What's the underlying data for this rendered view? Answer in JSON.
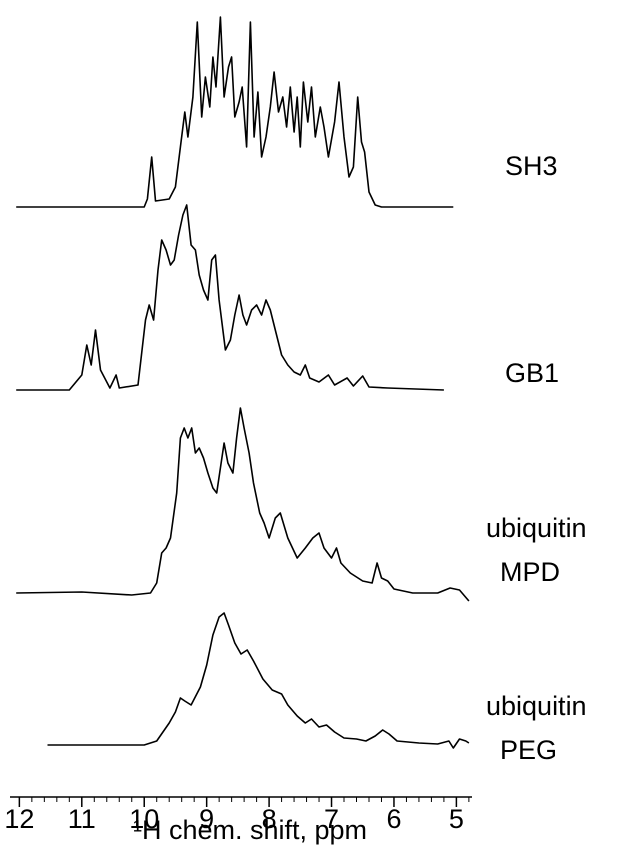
{
  "chart_data": {
    "type": "line",
    "xlabel": "¹H chem. shift, ppm",
    "xlim": [
      12.15,
      4.75
    ],
    "xticks": [
      12,
      11,
      10,
      9,
      8,
      7,
      6,
      5
    ],
    "xminorticks": [
      11.8,
      11.6,
      11.4,
      11.2,
      10.8,
      10.6,
      10.4,
      10.2,
      9.8,
      9.6,
      9.4,
      9.2,
      8.8,
      8.6,
      8.4,
      8.2,
      7.8,
      7.6,
      7.4,
      7.2,
      6.8,
      6.6,
      6.4,
      6.2,
      5.8,
      5.6,
      5.4,
      5.2,
      4.8
    ],
    "series": [
      {
        "name": [
          "SH3"
        ],
        "color": "#000000",
        "x": [
          12.05,
          10.0,
          9.95,
          9.88,
          9.82,
          9.6,
          9.5,
          9.42,
          9.35,
          9.3,
          9.22,
          9.15,
          9.08,
          9.02,
          8.95,
          8.9,
          8.85,
          8.78,
          8.72,
          8.65,
          8.6,
          8.55,
          8.48,
          8.43,
          8.36,
          8.3,
          8.24,
          8.18,
          8.12,
          8.05,
          7.98,
          7.92,
          7.85,
          7.78,
          7.72,
          7.66,
          7.6,
          7.55,
          7.5,
          7.45,
          7.38,
          7.32,
          7.26,
          7.18,
          7.12,
          7.05,
          6.95,
          6.88,
          6.8,
          6.72,
          6.65,
          6.58,
          6.52,
          6.47,
          6.4,
          6.3,
          6.2,
          5.05
        ],
        "values": [
          0,
          0,
          8,
          50,
          6,
          8,
          20,
          60,
          95,
          70,
          110,
          185,
          90,
          130,
          100,
          150,
          120,
          190,
          110,
          140,
          150,
          90,
          105,
          120,
          60,
          185,
          70,
          115,
          50,
          70,
          100,
          135,
          95,
          110,
          80,
          120,
          75,
          110,
          60,
          125,
          85,
          120,
          70,
          100,
          80,
          50,
          85,
          125,
          70,
          30,
          40,
          110,
          65,
          55,
          15,
          2,
          0,
          0
        ]
      },
      {
        "name": [
          "GB1"
        ],
        "color": "#000000",
        "x": [
          12.05,
          11.2,
          11.0,
          10.92,
          10.85,
          10.78,
          10.7,
          10.55,
          10.45,
          10.4,
          10.1,
          9.98,
          9.92,
          9.85,
          9.78,
          9.72,
          9.65,
          9.58,
          9.52,
          9.45,
          9.38,
          9.32,
          9.25,
          9.18,
          9.12,
          9.05,
          8.98,
          8.92,
          8.86,
          8.8,
          8.7,
          8.62,
          8.55,
          8.48,
          8.42,
          8.36,
          8.28,
          8.2,
          8.12,
          8.05,
          7.98,
          7.9,
          7.8,
          7.7,
          7.6,
          7.5,
          7.42,
          7.35,
          7.2,
          7.05,
          6.95,
          6.75,
          6.65,
          6.5,
          6.4,
          6.1,
          5.2
        ],
        "values": [
          0,
          0,
          15,
          45,
          25,
          60,
          20,
          2,
          15,
          2,
          5,
          70,
          85,
          70,
          120,
          150,
          140,
          125,
          130,
          155,
          175,
          185,
          145,
          140,
          115,
          100,
          90,
          130,
          135,
          90,
          40,
          50,
          75,
          95,
          75,
          65,
          80,
          85,
          75,
          90,
          80,
          60,
          35,
          25,
          18,
          15,
          25,
          12,
          8,
          15,
          5,
          12,
          4,
          14,
          3,
          2,
          0
        ]
      },
      {
        "name": [
          "ubiquitin",
          "MPD"
        ],
        "color": "#000000",
        "x": [
          12.05,
          11.0,
          10.2,
          9.9,
          9.8,
          9.72,
          9.65,
          9.58,
          9.48,
          9.42,
          9.36,
          9.3,
          9.24,
          9.18,
          9.12,
          9.05,
          8.98,
          8.9,
          8.84,
          8.78,
          8.72,
          8.66,
          8.58,
          8.52,
          8.46,
          8.4,
          8.32,
          8.25,
          8.15,
          8.08,
          8.0,
          7.9,
          7.82,
          7.7,
          7.55,
          7.42,
          7.3,
          7.2,
          7.12,
          7.0,
          6.92,
          6.85,
          6.7,
          6.5,
          6.35,
          6.27,
          6.2,
          6.1,
          6.0,
          5.7,
          5.3,
          5.1,
          4.95,
          4.8
        ],
        "values": [
          0,
          1,
          -2,
          0,
          10,
          40,
          45,
          55,
          100,
          155,
          165,
          155,
          165,
          140,
          145,
          135,
          120,
          105,
          100,
          125,
          150,
          130,
          120,
          155,
          185,
          165,
          140,
          110,
          80,
          70,
          55,
          75,
          80,
          55,
          35,
          45,
          55,
          60,
          45,
          35,
          45,
          30,
          20,
          12,
          10,
          30,
          15,
          12,
          4,
          0,
          0,
          5,
          3,
          -8
        ]
      },
      {
        "name": [
          "ubiquitin",
          "PEG"
        ],
        "color": "#000000",
        "x": [
          11.55,
          10.0,
          9.8,
          9.6,
          9.5,
          9.42,
          9.35,
          9.25,
          9.1,
          9.0,
          8.9,
          8.8,
          8.72,
          8.65,
          8.55,
          8.45,
          8.35,
          8.25,
          8.1,
          7.95,
          7.8,
          7.7,
          7.55,
          7.42,
          7.32,
          7.2,
          7.08,
          6.95,
          6.8,
          6.6,
          6.45,
          6.3,
          6.18,
          6.08,
          5.95,
          5.6,
          5.3,
          5.12,
          5.05,
          4.95,
          4.85,
          4.8
        ],
        "values": [
          0,
          0,
          4,
          22,
          33,
          47,
          44,
          40,
          58,
          80,
          110,
          128,
          132,
          120,
          102,
          91,
          95,
          84,
          66,
          55,
          51,
          40,
          29,
          22,
          26,
          18,
          20,
          13,
          7,
          6,
          4,
          9,
          15,
          11,
          4,
          2,
          1,
          4,
          -3,
          6,
          4,
          2
        ]
      }
    ]
  }
}
